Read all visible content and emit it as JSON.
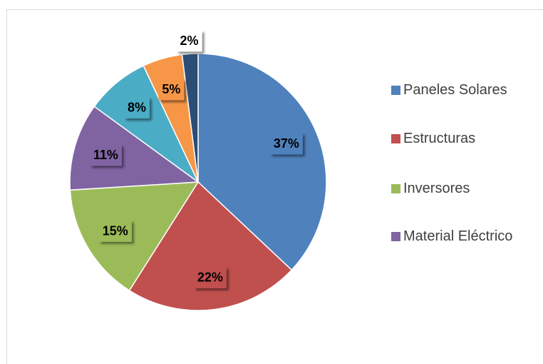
{
  "chart_data": {
    "type": "pie",
    "categories": [
      "Paneles Solares",
      "Estructuras",
      "Inversores",
      "Material Eléctrico",
      null,
      null,
      null
    ],
    "values": [
      37,
      22,
      15,
      11,
      8,
      5,
      2
    ],
    "value_labels": [
      "37%",
      "22%",
      "15%",
      "11%",
      "8%",
      "5%",
      "2%"
    ],
    "colors": [
      "#4f81bd",
      "#c0504d",
      "#9bbb59",
      "#8064a2",
      "#4bacc6",
      "#f79646",
      "#2c4d75"
    ],
    "legend": "right"
  }
}
